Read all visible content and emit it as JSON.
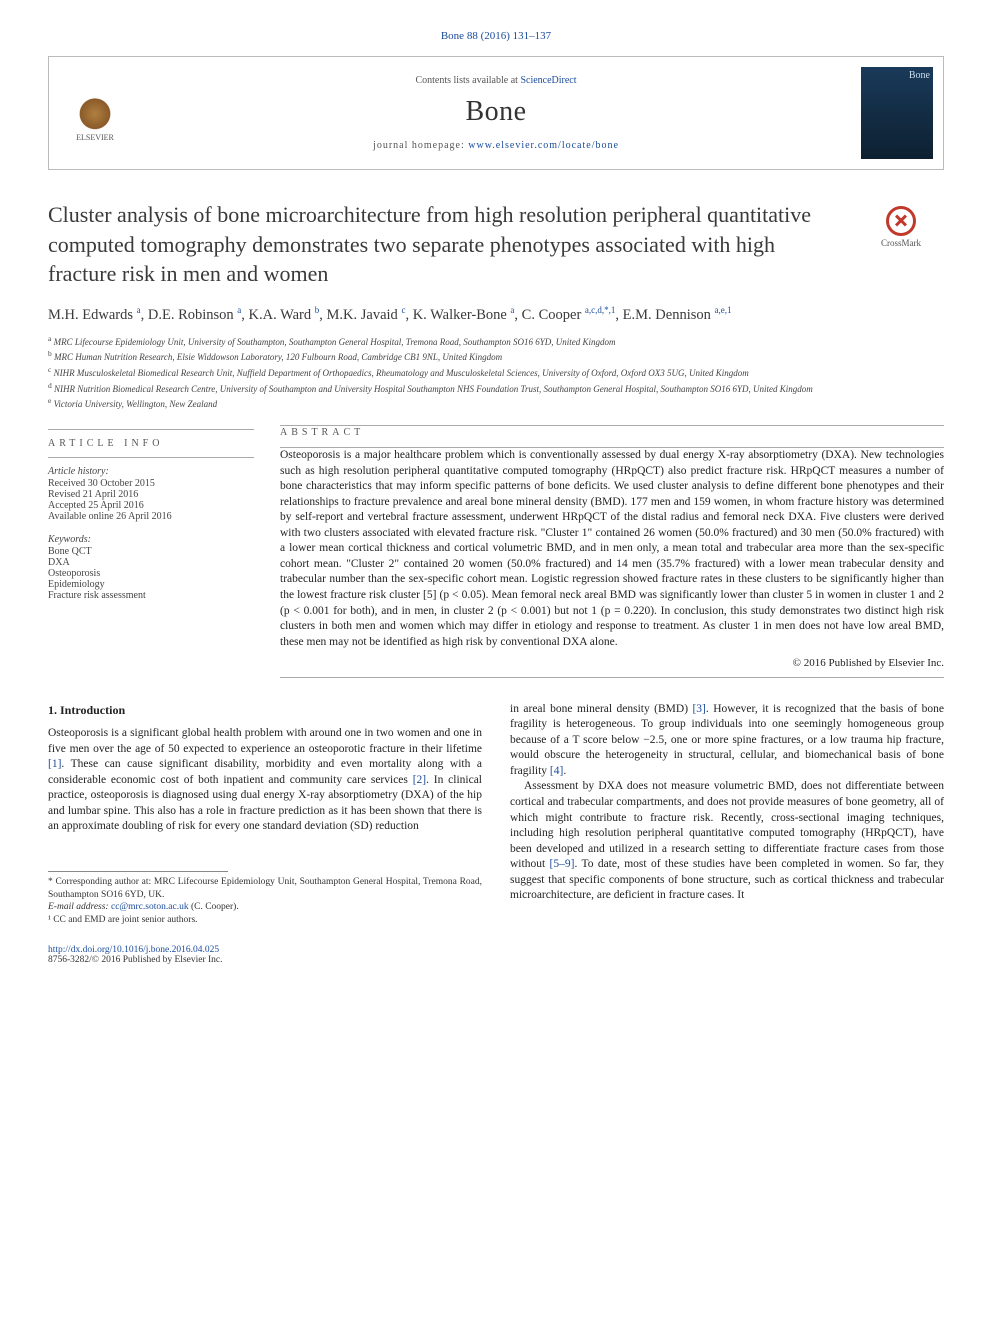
{
  "citation": {
    "text": "Bone 88 (2016) 131–137",
    "color": "#1a4b9b",
    "fontsize": 11
  },
  "header": {
    "contents_prefix": "Contents lists available at ",
    "contents_link": "ScienceDirect",
    "journal": "Bone",
    "journal_fontsize": 28,
    "homepage_prefix": "journal homepage: ",
    "homepage_link": "www.elsevier.com/locate/bone",
    "publisher_label": "ELSEVIER",
    "cover_label": "Bone"
  },
  "crossmark": {
    "label": "CrossMark"
  },
  "title": "Cluster analysis of bone microarchitecture from high resolution peripheral quantitative computed tomography demonstrates two separate phenotypes associated with high fracture risk in men and women",
  "title_fontsize": 22,
  "title_color": "#3a3a3a",
  "authors": [
    {
      "name": "M.H. Edwards",
      "sup": "a"
    },
    {
      "name": "D.E. Robinson",
      "sup": "a"
    },
    {
      "name": "K.A. Ward",
      "sup": "b"
    },
    {
      "name": "M.K. Javaid",
      "sup": "c"
    },
    {
      "name": "K. Walker-Bone",
      "sup": "a"
    },
    {
      "name": "C. Cooper",
      "sup": "a,c,d,*,1"
    },
    {
      "name": "E.M. Dennison",
      "sup": "a,e,1"
    }
  ],
  "authors_fontsize": 14.5,
  "affiliations": [
    {
      "sup": "a",
      "text": "MRC Lifecourse Epidemiology Unit, University of Southampton, Southampton General Hospital, Tremona Road, Southampton SO16 6YD, United Kingdom"
    },
    {
      "sup": "b",
      "text": "MRC Human Nutrition Research, Elsie Widdowson Laboratory, 120 Fulbourn Road, Cambridge CB1 9NL, United Kingdom"
    },
    {
      "sup": "c",
      "text": "NIHR Musculoskeletal Biomedical Research Unit, Nuffield Department of Orthopaedics, Rheumatology and Musculoskeletal Sciences, University of Oxford, Oxford OX3 5UG, United Kingdom"
    },
    {
      "sup": "d",
      "text": "NIHR Nutrition Biomedical Research Centre, University of Southampton and University Hospital Southampton NHS Foundation Trust, Southampton General Hospital, Southampton SO16 6YD, United Kingdom"
    },
    {
      "sup": "e",
      "text": "Victoria University, Wellington, New Zealand"
    }
  ],
  "affiliations_fontsize": 9,
  "article_info": {
    "heading": "article info",
    "history_label": "Article history:",
    "history": [
      "Received 30 October 2015",
      "Revised 21 April 2016",
      "Accepted 25 April 2016",
      "Available online 26 April 2016"
    ],
    "keywords_label": "Keywords:",
    "keywords": [
      "Bone QCT",
      "DXA",
      "Osteoporosis",
      "Epidemiology",
      "Fracture risk assessment"
    ],
    "fontsize": 10
  },
  "abstract": {
    "heading": "abstract",
    "text": "Osteoporosis is a major healthcare problem which is conventionally assessed by dual energy X-ray absorptiometry (DXA). New technologies such as high resolution peripheral quantitative computed tomography (HRpQCT) also predict fracture risk. HRpQCT measures a number of bone characteristics that may inform specific patterns of bone deficits. We used cluster analysis to define different bone phenotypes and their relationships to fracture prevalence and areal bone mineral density (BMD). 177 men and 159 women, in whom fracture history was determined by self-report and vertebral fracture assessment, underwent HRpQCT of the distal radius and femoral neck DXA. Five clusters were derived with two clusters associated with elevated fracture risk. \"Cluster 1\" contained 26 women (50.0% fractured) and 30 men (50.0% fractured) with a lower mean cortical thickness and cortical volumetric BMD, and in men only, a mean total and trabecular area more than the sex-specific cohort mean. \"Cluster 2\" contained 20 women (50.0% fractured) and 14 men (35.7% fractured) with a lower mean trabecular density and trabecular number than the sex-specific cohort mean. Logistic regression showed fracture rates in these clusters to be significantly higher than the lowest fracture risk cluster [5] (p < 0.05). Mean femoral neck areal BMD was significantly lower than cluster 5 in women in cluster 1 and 2 (p < 0.001 for both), and in men, in cluster 2 (p < 0.001) but not 1 (p = 0.220). In conclusion, this study demonstrates two distinct high risk clusters in both men and women which may differ in etiology and response to treatment. As cluster 1 in men does not have low areal BMD, these men may not be identified as high risk by conventional DXA alone.",
    "copyright": "© 2016 Published by Elsevier Inc.",
    "fontsize": 11.5
  },
  "intro": {
    "heading": "1. Introduction",
    "col1_p1": "Osteoporosis is a significant global health problem with around one in two women and one in five men over the age of 50 expected to experience an osteoporotic fracture in their lifetime [1]. These can cause significant disability, morbidity and even mortality along with a considerable economic cost of both inpatient and community care services [2]. In clinical practice, osteoporosis is diagnosed using dual energy X-ray absorptiometry (DXA) of the hip and lumbar spine. This also has a role in fracture prediction as it has been shown that there is an approximate doubling of risk for every one standard deviation (SD) reduction",
    "col2_p1": "in areal bone mineral density (BMD) [3]. However, it is recognized that the basis of bone fragility is heterogeneous. To group individuals into one seemingly homogeneous group because of a T score below −2.5, one or more spine fractures, or a low trauma hip fracture, would obscure the heterogeneity in structural, cellular, and biomechanical basis of bone fragility [4].",
    "col2_p2": "Assessment by DXA does not measure volumetric BMD, does not differentiate between cortical and trabecular compartments, and does not provide measures of bone geometry, all of which might contribute to fracture risk. Recently, cross-sectional imaging techniques, including high resolution peripheral quantitative computed tomography (HRpQCT), have been developed and utilized in a research setting to differentiate fracture cases from those without [5–9]. To date, most of these studies have been completed in women. So far, they suggest that specific components of bone structure, such as cortical thickness and trabecular microarchitecture, are deficient in fracture cases. It",
    "fontsize": 11.5
  },
  "footnotes": {
    "corresponding": "* Corresponding author at: MRC Lifecourse Epidemiology Unit, Southampton General Hospital, Tremona Road, Southampton SO16 6YD, UK.",
    "email_label": "E-mail address: ",
    "email": "cc@mrc.soton.ac.uk",
    "email_paren": " (C. Cooper).",
    "note1": "¹ CC and EMD are joint senior authors.",
    "fontsize": 9.5
  },
  "footer": {
    "doi": "http://dx.doi.org/10.1016/j.bone.2016.04.025",
    "issn_line": "8756-3282/© 2016 Published by Elsevier Inc.",
    "fontsize": 9.5
  },
  "inline_refs_color": "#1a4b9b"
}
